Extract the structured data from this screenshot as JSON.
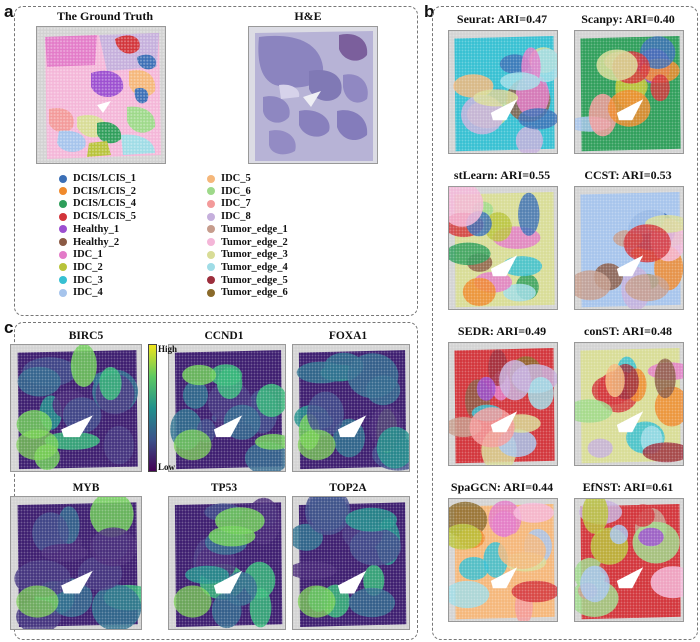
{
  "panels": {
    "a": "a",
    "b": "b",
    "c": "c"
  },
  "panel_a": {
    "ground_truth_title": "The Ground Truth",
    "he_title": "H&E",
    "legend_left": [
      {
        "label": "DCIS/LCIS_1",
        "color": "#3b6fb6"
      },
      {
        "label": "DCIS/LCIS_2",
        "color": "#f08a2c"
      },
      {
        "label": "DCIS/LCIS_4",
        "color": "#2e9e5a"
      },
      {
        "label": "DCIS/LCIS_5",
        "color": "#d2343a"
      },
      {
        "label": "Healthy_1",
        "color": "#9c4fd0"
      },
      {
        "label": "Healthy_2",
        "color": "#8b5a44"
      },
      {
        "label": "IDC_1",
        "color": "#e37bc8"
      },
      {
        "label": "IDC_2",
        "color": "#b8c33a"
      },
      {
        "label": "IDC_3",
        "color": "#36c0d2"
      },
      {
        "label": "IDC_4",
        "color": "#a6c4ec"
      }
    ],
    "legend_right": [
      {
        "label": "IDC_5",
        "color": "#f5b77a"
      },
      {
        "label": "IDC_6",
        "color": "#9ed98a"
      },
      {
        "label": "IDC_7",
        "color": "#f39a9a"
      },
      {
        "label": "IDC_8",
        "color": "#c5afdc"
      },
      {
        "label": "Tumor_edge_1",
        "color": "#c69c8c"
      },
      {
        "label": "Tumor_edge_2",
        "color": "#f4b6d8"
      },
      {
        "label": "Tumor_edge_3",
        "color": "#d8dc96"
      },
      {
        "label": "Tumor_edge_4",
        "color": "#9fdce6"
      },
      {
        "label": "Tumor_edge_5",
        "color": "#9c2e3c"
      },
      {
        "label": "Tumor_edge_6",
        "color": "#8a6a2a"
      }
    ]
  },
  "panel_b": {
    "methods": [
      {
        "title": "Seurat: ARI=0.47"
      },
      {
        "title": "Scanpy: ARI=0.40"
      },
      {
        "title": "stLearn: ARI=0.55"
      },
      {
        "title": "CCST: ARI=0.53"
      },
      {
        "title": "SEDR: ARI=0.49"
      },
      {
        "title": "conST: ARI=0.48"
      },
      {
        "title": "SpaGCN: ARI=0.44"
      },
      {
        "title": "EfNST: ARI=0.61"
      }
    ]
  },
  "panel_c": {
    "genes": [
      "BIRC5",
      "CCND1",
      "FOXA1",
      "MYB",
      "TP53",
      "TOP2A"
    ],
    "colorbar": {
      "high": "High",
      "low": "Low"
    }
  }
}
